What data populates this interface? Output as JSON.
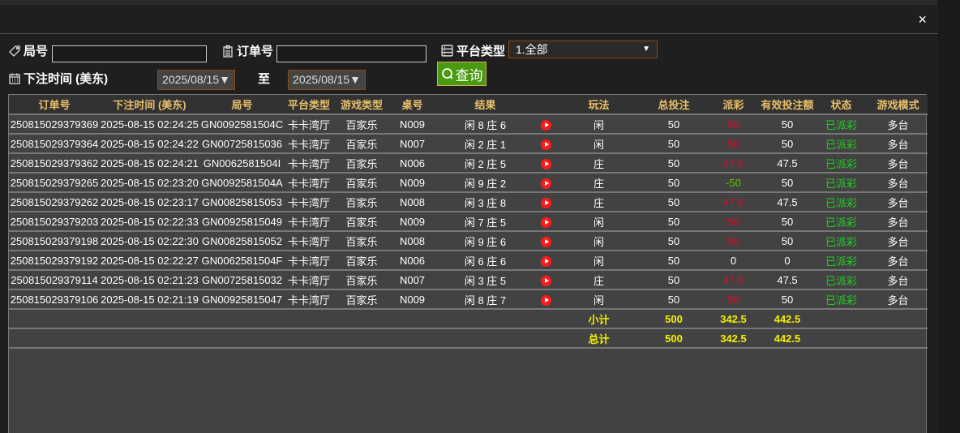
{
  "filters": {
    "round_label": "局号",
    "round_value": "",
    "order_label": "订单号",
    "order_value": "",
    "platform_label": "平台类型",
    "platform_value": "1.全部",
    "time_label": "下注时间 (美东)",
    "date_from": "2025/08/15▼",
    "to_label": "至",
    "date_to": "2025/08/15▼",
    "query_label": "查询"
  },
  "close_label": "×",
  "table": {
    "headers": [
      "订单号",
      "下注时间 (美东)",
      "局号",
      "平台类型",
      "游戏类型",
      "桌号",
      "结果",
      "",
      "玩法",
      "总投注",
      "派彩",
      "有效投注额",
      "状态",
      "游戏模式"
    ],
    "rows": [
      [
        "250815029379369",
        "2025-08-15 02:24:25",
        "GN0092581504C",
        "卡卡湾厅",
        "百家乐",
        "N009",
        "闲 8 庄 6",
        "",
        "闲",
        "50",
        "50",
        "50",
        "已派彩",
        "多台"
      ],
      [
        "250815029379364",
        "2025-08-15 02:24:22",
        "GN00725815036",
        "卡卡湾厅",
        "百家乐",
        "N007",
        "闲 2 庄 1",
        "",
        "闲",
        "50",
        "50",
        "50",
        "已派彩",
        "多台"
      ],
      [
        "250815029379362",
        "2025-08-15 02:24:21",
        "GN0062581504I",
        "卡卡湾厅",
        "百家乐",
        "N006",
        "闲 2 庄 5",
        "",
        "庄",
        "50",
        "47.5",
        "47.5",
        "已派彩",
        "多台"
      ],
      [
        "250815029379265",
        "2025-08-15 02:23:20",
        "GN0092581504A",
        "卡卡湾厅",
        "百家乐",
        "N009",
        "闲 9 庄 2",
        "",
        "庄",
        "50",
        "-50",
        "50",
        "已派彩",
        "多台"
      ],
      [
        "250815029379262",
        "2025-08-15 02:23:17",
        "GN00825815053",
        "卡卡湾厅",
        "百家乐",
        "N008",
        "闲 3 庄 8",
        "",
        "庄",
        "50",
        "47.5",
        "47.5",
        "已派彩",
        "多台"
      ],
      [
        "250815029379203",
        "2025-08-15 02:22:33",
        "GN00925815049",
        "卡卡湾厅",
        "百家乐",
        "N009",
        "闲 7 庄 5",
        "",
        "闲",
        "50",
        "50",
        "50",
        "已派彩",
        "多台"
      ],
      [
        "250815029379198",
        "2025-08-15 02:22:30",
        "GN00825815052",
        "卡卡湾厅",
        "百家乐",
        "N008",
        "闲 9 庄 6",
        "",
        "闲",
        "50",
        "50",
        "50",
        "已派彩",
        "多台"
      ],
      [
        "250815029379192",
        "2025-08-15 02:22:27",
        "GN0062581504F",
        "卡卡湾厅",
        "百家乐",
        "N006",
        "闲 6 庄 6",
        "",
        "闲",
        "50",
        "0",
        "0",
        "已派彩",
        "多台"
      ],
      [
        "250815029379114",
        "2025-08-15 02:21:23",
        "GN00725815032",
        "卡卡湾厅",
        "百家乐",
        "N007",
        "闲 3 庄 5",
        "",
        "庄",
        "50",
        "47.5",
        "47.5",
        "已派彩",
        "多台"
      ],
      [
        "250815029379106",
        "2025-08-15 02:21:19",
        "GN00925815047",
        "卡卡湾厅",
        "百家乐",
        "N009",
        "闲 8 庄 7",
        "",
        "闲",
        "50",
        "50",
        "50",
        "已派彩",
        "多台"
      ]
    ],
    "subtotal": {
      "label": "小计",
      "bet": "500",
      "payout": "342.5",
      "valid": "442.5"
    },
    "total": {
      "label": "总计",
      "bet": "500",
      "payout": "342.5",
      "valid": "442.5"
    }
  },
  "colors": {
    "header_text": "#e8c06a",
    "payout_win": "#d0102a",
    "payout_loss": "#5ec800",
    "status": "#20d020",
    "totals": "#f4f000",
    "query_button": "#4a9a10"
  }
}
